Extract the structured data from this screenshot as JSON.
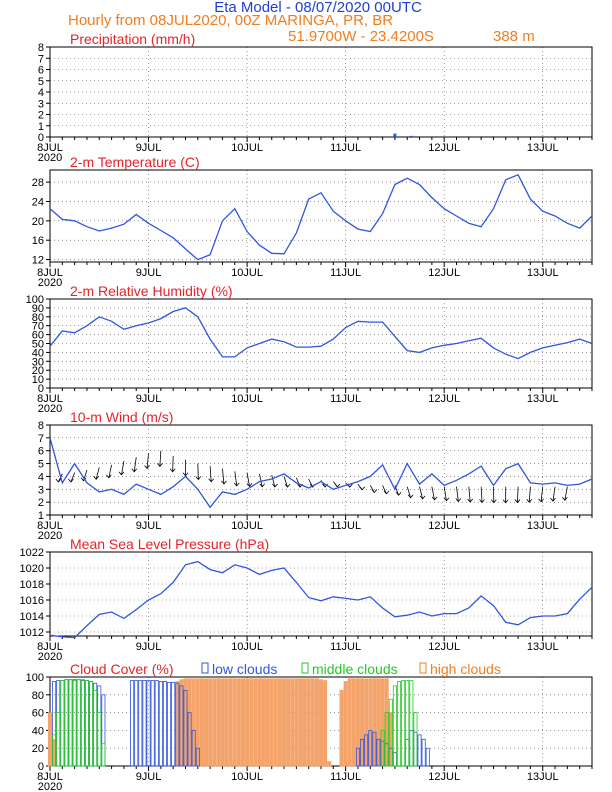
{
  "header": {
    "title": "Eta Model - 08/07/2020 00UTC",
    "subtitle": "Hourly from 08JUL2020, 00Z   MARINGA, PR, BR",
    "coords": "51.9700W - 23.4200S",
    "elevation": "388   m"
  },
  "colors": {
    "title": "#1f3fd0",
    "orange": "#f07d1e",
    "red": "#e8222a",
    "line": "#3355dd",
    "green": "#22cc22",
    "high": "#f4a46a"
  },
  "x_axis": {
    "days": [
      "8JUL",
      "9JUL",
      "10JUL",
      "11JUL",
      "12JUL",
      "13JUL"
    ],
    "year": "2020",
    "range_hours": [
      0,
      132
    ]
  },
  "chart_data": [
    {
      "type": "bar",
      "title": "Precipitation (mm/h)",
      "ylim": [
        0,
        8
      ],
      "yticks": [
        0,
        1,
        2,
        3,
        4,
        5,
        6,
        7,
        8
      ],
      "x": [
        84,
        88
      ],
      "values": [
        0.3,
        0.1
      ]
    },
    {
      "type": "line",
      "title": "2-m Temperature (C)",
      "ylim": [
        11.5,
        30.5
      ],
      "yticks": [
        12,
        16,
        20,
        24,
        28
      ],
      "x": [
        0,
        3,
        6,
        9,
        12,
        15,
        18,
        21,
        24,
        27,
        30,
        33,
        36,
        39,
        42,
        45,
        48,
        51,
        54,
        57,
        60,
        63,
        66,
        69,
        72,
        75,
        78,
        81,
        84,
        87,
        90,
        93,
        96,
        99,
        102,
        105,
        108,
        111,
        114,
        117,
        120,
        123,
        126,
        129,
        132
      ],
      "values": [
        22.5,
        20.3,
        20.0,
        18.8,
        17.9,
        18.5,
        19.3,
        21.3,
        19.5,
        18.0,
        16.5,
        14.2,
        12.0,
        13.0,
        20.0,
        22.5,
        17.8,
        15.0,
        13.3,
        13.2,
        17.5,
        24.5,
        25.8,
        22.0,
        20.0,
        18.3,
        17.8,
        21.5,
        27.5,
        28.8,
        27.5,
        24.8,
        22.5,
        21.0,
        19.5,
        18.8,
        22.5,
        28.5,
        29.5,
        24.5,
        22.0,
        21.0,
        19.5,
        18.5,
        21.0
      ],
      "xlabel": "",
      "ylabel": ""
    },
    {
      "type": "line",
      "title": "2-m Relative Humidity (%)",
      "ylim": [
        0,
        100
      ],
      "yticks": [
        0,
        10,
        20,
        30,
        40,
        50,
        60,
        70,
        80,
        90,
        100
      ],
      "x": [
        0,
        3,
        6,
        9,
        12,
        15,
        18,
        21,
        24,
        27,
        30,
        33,
        36,
        39,
        42,
        45,
        48,
        51,
        54,
        57,
        60,
        63,
        66,
        69,
        72,
        75,
        78,
        81,
        84,
        87,
        90,
        93,
        96,
        99,
        102,
        105,
        108,
        111,
        114,
        117,
        120,
        123,
        126,
        129,
        132
      ],
      "values": [
        47,
        64,
        62,
        70,
        80,
        75,
        66,
        70,
        73,
        78,
        86,
        90,
        80,
        55,
        35,
        35,
        45,
        50,
        55,
        52,
        46,
        46,
        47,
        55,
        68,
        75,
        74,
        74,
        58,
        42,
        40,
        45,
        48,
        50,
        53,
        56,
        45,
        38,
        33,
        40,
        45,
        48,
        51,
        55,
        50
      ],
      "xlabel": "",
      "ylabel": ""
    },
    {
      "type": "line",
      "title": "10-m Wind (m/s)",
      "ylim": [
        1,
        8
      ],
      "yticks": [
        1,
        2,
        3,
        4,
        5,
        6,
        7,
        8
      ],
      "x": [
        0,
        3,
        6,
        9,
        12,
        15,
        18,
        21,
        24,
        27,
        30,
        33,
        36,
        39,
        42,
        45,
        48,
        51,
        54,
        57,
        60,
        63,
        66,
        69,
        72,
        75,
        78,
        81,
        84,
        87,
        90,
        93,
        96,
        99,
        102,
        105,
        108,
        111,
        114,
        117,
        120,
        123,
        126,
        129,
        132
      ],
      "values": [
        7.0,
        3.5,
        5.0,
        3.5,
        2.8,
        3.0,
        2.6,
        3.4,
        3.0,
        2.6,
        3.2,
        4.0,
        3.0,
        1.6,
        2.8,
        2.6,
        3.0,
        3.6,
        3.8,
        4.2,
        3.5,
        3.1,
        3.6,
        3.0,
        3.3,
        3.6,
        4.0,
        4.9,
        3.0,
        5.0,
        3.4,
        4.2,
        3.3,
        3.7,
        4.2,
        4.8,
        3.3,
        4.6,
        5.0,
        3.5,
        3.4,
        3.5,
        3.3,
        3.4,
        3.8
      ],
      "arrow_row_y": [
        4.2,
        4.3,
        4.5,
        4.7,
        4.9,
        5.2,
        5.5,
        5.8,
        6.0,
        5.6,
        5.3,
        5.0,
        4.8,
        4.6,
        4.4,
        4.3,
        4.2,
        4.1,
        4.0,
        3.9,
        3.8,
        3.7,
        3.6,
        3.5,
        3.4,
        3.3,
        3.3,
        3.3,
        3.2,
        3.2,
        3.2,
        3.2,
        3.2,
        3.2,
        3.2,
        3.2,
        3.2,
        3.2,
        3.2,
        3.2,
        3.2,
        3.2
      ],
      "xlabel": "",
      "ylabel": ""
    },
    {
      "type": "line",
      "title": "Mean Sea Level Pressure (hPa)",
      "ylim": [
        1011.5,
        1022
      ],
      "yticks": [
        1012,
        1014,
        1016,
        1018,
        1020,
        1022
      ],
      "ytick_labels": [
        "1012",
        "1014",
        "1016",
        "1018",
        "1020",
        "1022"
      ],
      "x": [
        0,
        3,
        6,
        9,
        12,
        15,
        18,
        21,
        24,
        27,
        30,
        33,
        36,
        39,
        42,
        45,
        48,
        51,
        54,
        57,
        60,
        63,
        66,
        69,
        72,
        75,
        78,
        81,
        84,
        87,
        90,
        93,
        96,
        99,
        102,
        105,
        108,
        111,
        114,
        117,
        120,
        123,
        126,
        129,
        132
      ],
      "values": [
        1011.6,
        1011.4,
        1011.3,
        1012.8,
        1014.2,
        1014.5,
        1013.7,
        1014.8,
        1016.0,
        1016.8,
        1018.2,
        1020.4,
        1020.8,
        1019.8,
        1019.4,
        1020.4,
        1020.0,
        1019.2,
        1019.7,
        1020.0,
        1018.2,
        1016.3,
        1015.9,
        1016.4,
        1016.2,
        1016.0,
        1016.4,
        1015.0,
        1013.9,
        1014.1,
        1014.5,
        1014.0,
        1014.3,
        1014.3,
        1015.0,
        1016.5,
        1015.3,
        1013.2,
        1012.9,
        1013.8,
        1014.0,
        1014.0,
        1014.3,
        1016.1,
        1017.6
      ],
      "xlabel": "",
      "ylabel": ""
    },
    {
      "type": "bar",
      "title": "Cloud Cover (%)",
      "legend": [
        "low clouds",
        "middle clouds",
        "high clouds"
      ],
      "ylim": [
        0,
        100
      ],
      "yticks": [
        0,
        20,
        40,
        60,
        80,
        100
      ],
      "series": [
        {
          "name": "low clouds",
          "x": [
            0,
            1,
            2,
            3,
            4,
            5,
            6,
            7,
            8,
            9,
            10,
            11,
            12,
            13,
            14,
            15,
            16,
            17,
            18,
            19,
            20,
            21,
            22,
            23,
            24,
            25,
            26,
            27,
            28,
            29,
            30,
            31,
            32,
            33,
            34,
            35,
            36,
            75,
            76,
            77,
            78,
            79,
            80,
            81,
            82,
            83,
            84,
            85,
            86,
            87,
            88,
            89,
            90,
            91,
            92
          ],
          "values": [
            0,
            95,
            96,
            96,
            97,
            97,
            97,
            97,
            96,
            96,
            95,
            93,
            90,
            80,
            0,
            0,
            0,
            0,
            0,
            0,
            96,
            96,
            96,
            96,
            96,
            96,
            96,
            95,
            95,
            94,
            94,
            93,
            90,
            85,
            60,
            40,
            20,
            20,
            30,
            35,
            40,
            38,
            30,
            28,
            25,
            20,
            15,
            0,
            0,
            30,
            40,
            38,
            35,
            30,
            20
          ]
        },
        {
          "name": "middle clouds",
          "x": [
            0,
            1,
            2,
            3,
            4,
            5,
            6,
            7,
            8,
            9,
            10,
            11,
            12,
            13,
            14,
            15,
            16,
            17,
            18,
            19,
            20,
            21,
            22,
            23,
            24,
            25,
            26,
            27,
            28,
            29,
            30,
            31,
            32,
            33,
            34,
            35,
            36,
            81,
            82,
            83,
            84,
            85,
            86,
            87,
            88,
            89,
            90,
            91,
            92,
            93,
            94,
            95,
            96,
            97,
            98,
            99,
            100,
            101,
            102,
            103,
            104,
            105,
            106,
            107,
            108,
            109,
            110,
            111,
            112,
            113,
            114,
            115,
            116,
            117,
            118,
            119,
            120,
            121,
            122,
            123,
            124,
            125,
            126,
            127,
            128,
            129,
            130,
            131,
            132
          ],
          "values": [
            0,
            35,
            60,
            96,
            97,
            97,
            96,
            97,
            97,
            96,
            95,
            85,
            60,
            25,
            0,
            0,
            0,
            0,
            0,
            0,
            0,
            0,
            0,
            0,
            0,
            0,
            0,
            0,
            0,
            0,
            0,
            0,
            0,
            0,
            0,
            0,
            0,
            40,
            60,
            75,
            90,
            95,
            96,
            96,
            96,
            60,
            0,
            0,
            0,
            0,
            0,
            0,
            0,
            0,
            0,
            0,
            0,
            0,
            0,
            0,
            0,
            0,
            0,
            0,
            0,
            0,
            0,
            0,
            0,
            0,
            0,
            0,
            0,
            0,
            0,
            0,
            0,
            0,
            0,
            0,
            0,
            0,
            0,
            0,
            0,
            0,
            0,
            0,
            0
          ]
        },
        {
          "name": "high clouds",
          "x": [
            0,
            1,
            2,
            3,
            4,
            5,
            6,
            7,
            8,
            9,
            10,
            11,
            12,
            13,
            14,
            15,
            16,
            17,
            18,
            19,
            20,
            21,
            22,
            23,
            24,
            25,
            26,
            27,
            28,
            29,
            30,
            31,
            32,
            33,
            34,
            35,
            36,
            37,
            38,
            39,
            40,
            41,
            42,
            43,
            44,
            45,
            46,
            47,
            48,
            49,
            50,
            51,
            52,
            53,
            54,
            55,
            56,
            57,
            58,
            59,
            60,
            61,
            62,
            63,
            64,
            65,
            66,
            67,
            68,
            69,
            70,
            71,
            72,
            73,
            74,
            75,
            76,
            77,
            78,
            79,
            80,
            81,
            82,
            83,
            84,
            85
          ],
          "values": [
            60,
            30,
            0,
            0,
            0,
            0,
            0,
            0,
            0,
            0,
            0,
            0,
            0,
            0,
            0,
            0,
            0,
            0,
            0,
            0,
            0,
            0,
            0,
            0,
            0,
            0,
            0,
            0,
            0,
            0,
            0,
            95,
            97,
            98,
            98,
            98,
            98,
            98,
            98,
            98,
            98,
            98,
            98,
            98,
            98,
            98,
            98,
            98,
            98,
            98,
            98,
            98,
            98,
            98,
            98,
            98,
            98,
            98,
            98,
            98,
            98,
            98,
            98,
            98,
            98,
            98,
            97,
            96,
            5,
            0,
            0,
            85,
            95,
            98,
            98,
            98,
            98,
            98,
            98,
            98,
            98,
            98,
            98,
            60,
            0,
            0
          ]
        }
      ],
      "xlabel": "",
      "ylabel": ""
    }
  ]
}
